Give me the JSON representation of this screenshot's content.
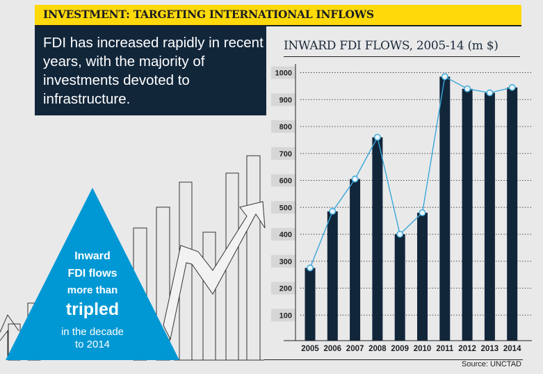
{
  "header": {
    "title": "INVESTMENT: TARGETING INTERNATIONAL INFLOWS"
  },
  "intro": {
    "text": "FDI has increased rapidly in recent years, with the majority of investments devoted to infrastructure."
  },
  "callout": {
    "line1": "Inward",
    "line2": "FDI flows",
    "line3": "more than",
    "line4": "tripled",
    "line5": "in the decade",
    "line6": "to 2014"
  },
  "source": "Source: UNCTAD",
  "colors": {
    "background": "#e9e9ea",
    "header_yellow": "#ffd90a",
    "navy": "#12263a",
    "bar": "#12263a",
    "line": "#3aa6d8",
    "callout_blue": "#0098d4",
    "ytick_box": "#d6d6d6"
  },
  "chart_data": {
    "type": "bar",
    "title": "INWARD FDI FLOWS, 2005-14 (m $)",
    "xlabel": "",
    "ylabel": "",
    "categories": [
      "2005",
      "2006",
      "2007",
      "2008",
      "2009",
      "2010",
      "2011",
      "2012",
      "2013",
      "2014"
    ],
    "series": [
      {
        "name": "Inward FDI flows (bars)",
        "type": "bar",
        "values": [
          275,
          485,
          605,
          760,
          400,
          480,
          985,
          940,
          925,
          945
        ]
      },
      {
        "name": "Inward FDI flows (line)",
        "type": "line",
        "values": [
          275,
          485,
          605,
          760,
          400,
          480,
          985,
          940,
          925,
          945
        ]
      }
    ],
    "yticks": [
      100,
      200,
      300,
      400,
      500,
      600,
      700,
      800,
      900,
      1000
    ],
    "ylim": [
      0,
      1000
    ],
    "grid": true,
    "gridstyle": "dotted",
    "legend": "none"
  }
}
